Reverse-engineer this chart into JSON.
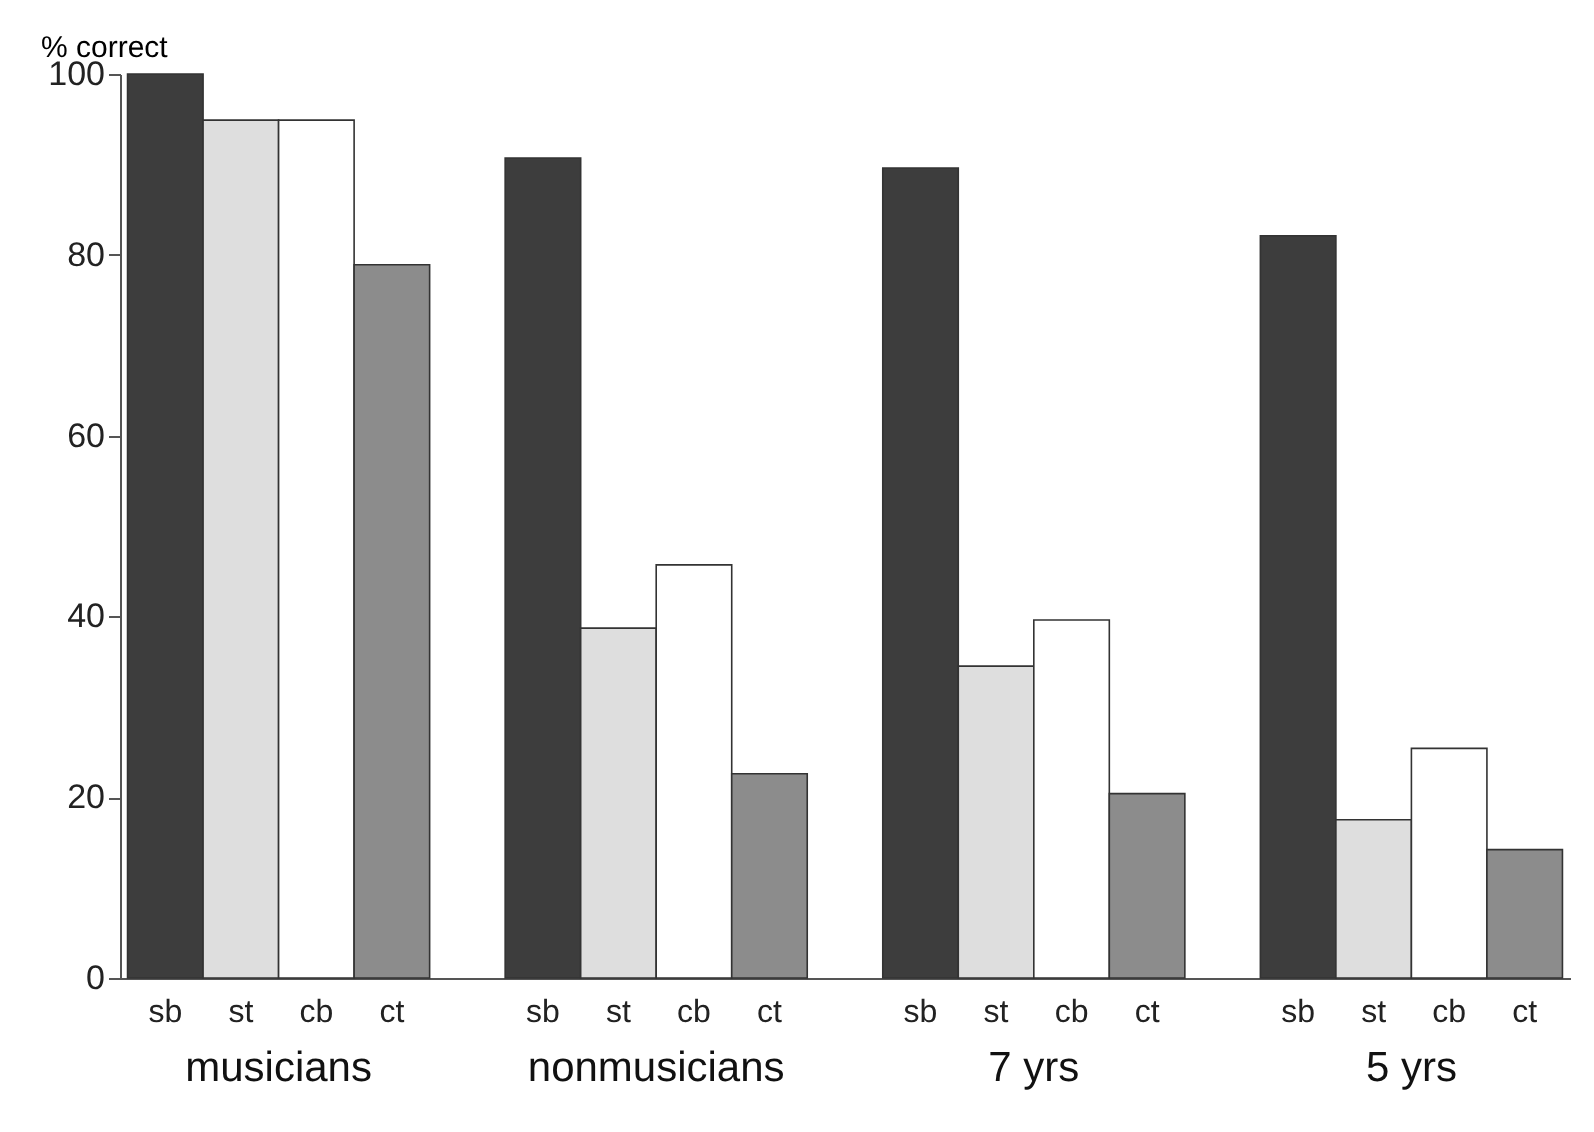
{
  "chart_data": {
    "type": "bar",
    "ylabel": "% correct",
    "categories": [
      "musicians",
      "nonmusicians",
      "7 yrs",
      "5 yrs"
    ],
    "series": [
      {
        "name": "sb",
        "color": "#3d3d3d",
        "values": [
          100,
          90.7,
          89.6,
          82.1
        ]
      },
      {
        "name": "st",
        "color": "#dedede",
        "values": [
          94.9,
          38.7,
          34.5,
          17.5
        ]
      },
      {
        "name": "cb",
        "color": "#ffffff",
        "values": [
          94.9,
          45.7,
          39.6,
          25.4
        ]
      },
      {
        "name": "ct",
        "color": "#8c8c8c",
        "values": [
          78.9,
          22.6,
          20.4,
          14.2
        ]
      }
    ],
    "ylim": [
      0,
      100
    ],
    "yticks": [
      0,
      20,
      40,
      60,
      80,
      100
    ],
    "grid": false,
    "legend": false
  }
}
